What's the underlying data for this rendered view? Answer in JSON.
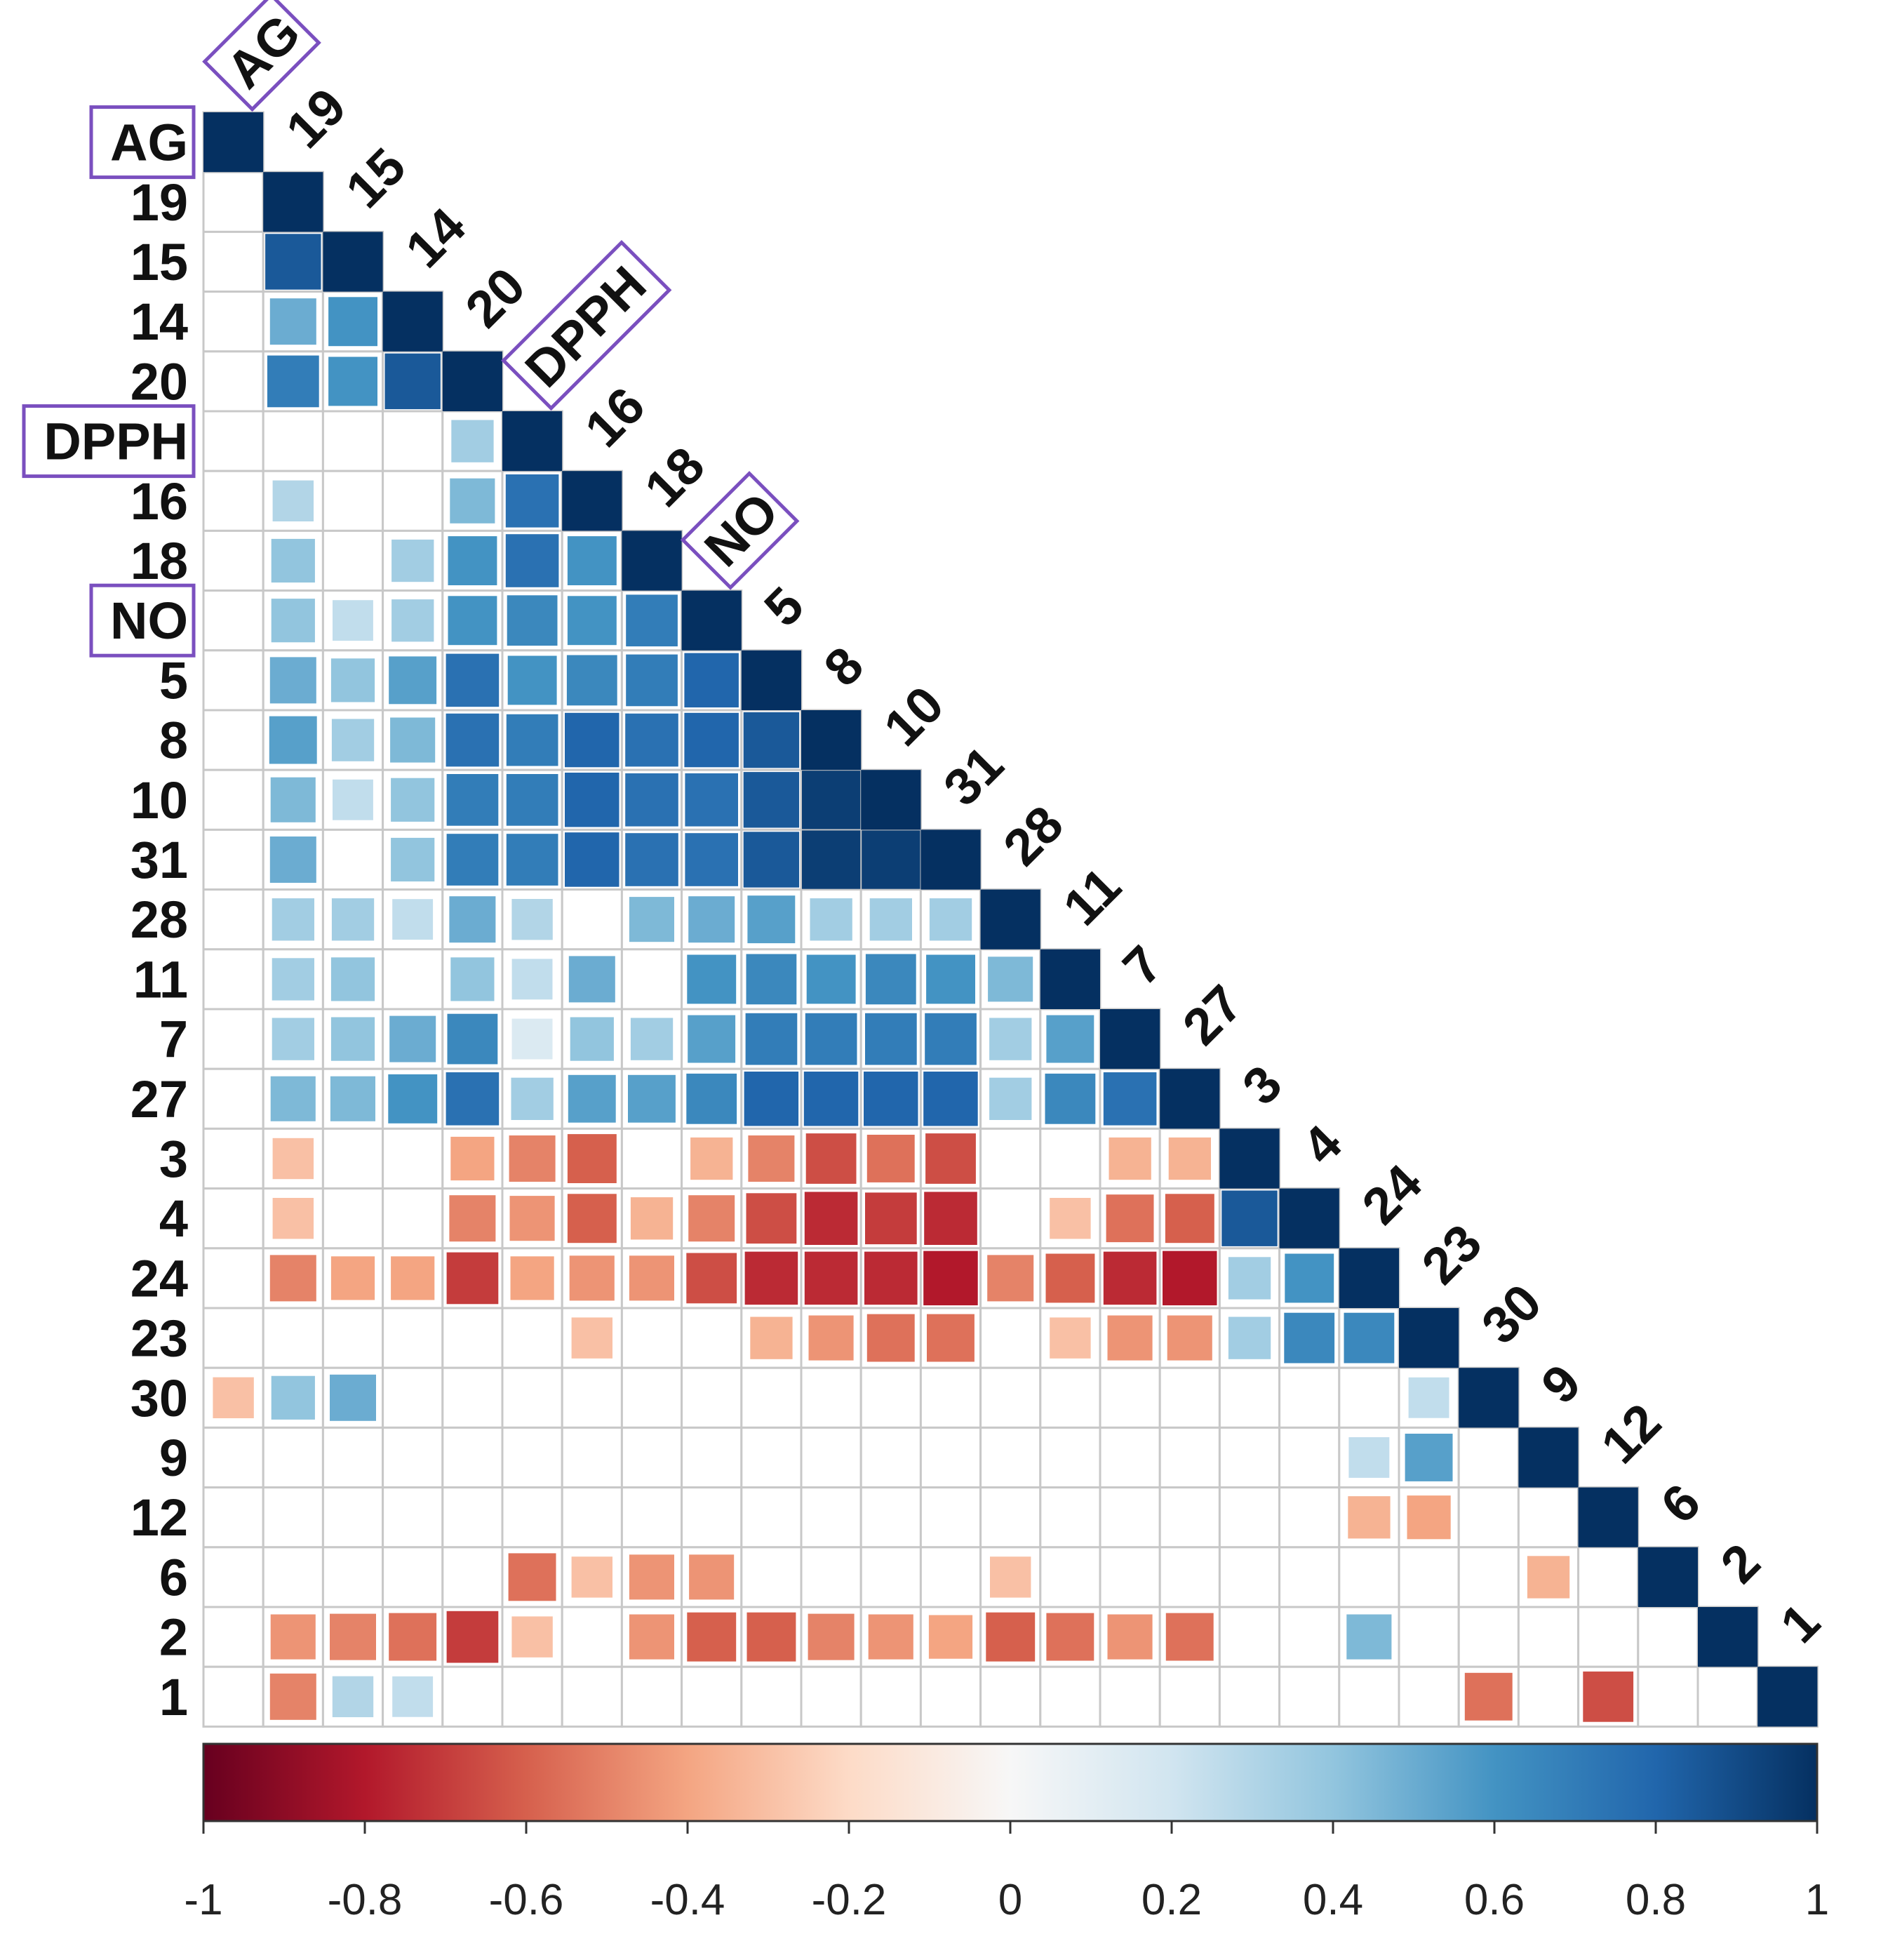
{
  "chart_data": {
    "type": "heatmap",
    "subtype": "correlation-matrix-lower-triangle",
    "title": "",
    "variables": [
      "AG",
      "19",
      "15",
      "14",
      "20",
      "DPPH",
      "16",
      "18",
      "NO",
      "5",
      "8",
      "10",
      "31",
      "28",
      "11",
      "7",
      "27",
      "3",
      "4",
      "24",
      "23",
      "30",
      "9",
      "12",
      "6",
      "2",
      "1"
    ],
    "highlighted_labels": [
      "AG",
      "DPPH",
      "NO"
    ],
    "values": [
      [
        1
      ],
      [
        0,
        1
      ],
      [
        0,
        0.85,
        1
      ],
      [
        0,
        0.5,
        0.6,
        1
      ],
      [
        0,
        0.7,
        0.6,
        0.85,
        1
      ],
      [
        0,
        0,
        0,
        0,
        0.35,
        1
      ],
      [
        0,
        0.3,
        0,
        0,
        0.45,
        0.75,
        1
      ],
      [
        0,
        0.4,
        0,
        0.35,
        0.6,
        0.75,
        0.6,
        1
      ],
      [
        0,
        0.4,
        0.25,
        0.35,
        0.6,
        0.65,
        0.6,
        0.7,
        1
      ],
      [
        0,
        0.5,
        0.4,
        0.55,
        0.75,
        0.6,
        0.65,
        0.7,
        0.8,
        1
      ],
      [
        0,
        0.55,
        0.35,
        0.45,
        0.75,
        0.7,
        0.8,
        0.75,
        0.8,
        0.85,
        1
      ],
      [
        0,
        0.45,
        0.25,
        0.4,
        0.7,
        0.7,
        0.8,
        0.75,
        0.75,
        0.85,
        0.95,
        1
      ],
      [
        0,
        0.5,
        0,
        0.4,
        0.7,
        0.7,
        0.8,
        0.75,
        0.75,
        0.85,
        0.95,
        0.95,
        1
      ],
      [
        0,
        0.35,
        0.35,
        0.25,
        0.5,
        0.3,
        0,
        0.45,
        0.5,
        0.55,
        0.35,
        0.35,
        0.35,
        1
      ],
      [
        0,
        0.35,
        0.4,
        0,
        0.4,
        0.25,
        0.5,
        0,
        0.6,
        0.65,
        0.6,
        0.65,
        0.6,
        0.45,
        1
      ],
      [
        0,
        0.35,
        0.4,
        0.5,
        0.65,
        0.15,
        0.4,
        0.35,
        0.55,
        0.7,
        0.7,
        0.7,
        0.7,
        0.35,
        0.55,
        1
      ],
      [
        0,
        0.45,
        0.45,
        0.6,
        0.75,
        0.35,
        0.55,
        0.55,
        0.65,
        0.8,
        0.8,
        0.8,
        0.8,
        0.35,
        0.65,
        0.75,
        1
      ],
      [
        0,
        -0.3,
        0,
        0,
        -0.4,
        -0.5,
        -0.6,
        0,
        -0.35,
        -0.5,
        -0.65,
        -0.55,
        -0.65,
        0,
        0,
        -0.35,
        -0.35,
        1
      ],
      [
        0,
        -0.3,
        0,
        0,
        -0.5,
        -0.45,
        -0.6,
        -0.35,
        -0.5,
        -0.65,
        -0.75,
        -0.7,
        -0.75,
        0,
        -0.3,
        -0.55,
        -0.6,
        0.85,
        1
      ],
      [
        0,
        -0.5,
        -0.4,
        -0.4,
        -0.7,
        -0.4,
        -0.45,
        -0.45,
        -0.65,
        -0.75,
        -0.75,
        -0.75,
        -0.8,
        -0.5,
        -0.6,
        -0.75,
        -0.8,
        0.35,
        0.6,
        1
      ],
      [
        0,
        0,
        0,
        0,
        0,
        0,
        -0.3,
        0,
        0,
        -0.35,
        -0.45,
        -0.55,
        -0.55,
        0,
        -0.3,
        -0.45,
        -0.45,
        0.35,
        0.65,
        0.65,
        1
      ],
      [
        -0.3,
        0.4,
        0.5,
        0,
        0,
        0,
        0,
        0,
        0,
        0,
        0,
        0,
        0,
        0,
        0,
        0,
        0,
        0,
        0,
        0,
        0.25,
        1
      ],
      [
        0,
        0,
        0,
        0,
        0,
        0,
        0,
        0,
        0,
        0,
        0,
        0,
        0,
        0,
        0,
        0,
        0,
        0,
        0,
        0.25,
        0.55,
        0,
        1
      ],
      [
        0,
        0,
        0,
        0,
        0,
        0,
        0,
        0,
        0,
        0,
        0,
        0,
        0,
        0,
        0,
        0,
        0,
        0,
        0,
        -0.35,
        -0.4,
        0,
        0,
        1
      ],
      [
        0,
        0,
        0,
        0,
        0,
        -0.55,
        -0.3,
        -0.45,
        -0.45,
        0,
        0,
        0,
        0,
        -0.3,
        0,
        0,
        0,
        0,
        0,
        0,
        0,
        0,
        -0.35,
        0,
        1
      ],
      [
        0,
        -0.45,
        -0.5,
        -0.55,
        -0.7,
        -0.3,
        0,
        -0.45,
        -0.6,
        -0.6,
        -0.5,
        -0.45,
        -0.4,
        -0.6,
        -0.55,
        -0.45,
        -0.55,
        0,
        0,
        0.45,
        0,
        0,
        0,
        0,
        0,
        1
      ],
      [
        0,
        -0.5,
        0.3,
        0.25,
        0,
        0,
        0,
        0,
        0,
        0,
        0,
        0,
        0,
        0,
        0,
        0,
        0,
        0,
        0,
        0,
        0,
        -0.55,
        0,
        -0.65,
        0,
        0,
        1
      ]
    ],
    "colorbar": {
      "range": [
        -1,
        1
      ],
      "ticks": [
        "-1",
        "-0.8",
        "-0.6",
        "-0.4",
        "-0.2",
        "0",
        "0.2",
        "0.4",
        "0.6",
        "0.8",
        "1"
      ],
      "low_color": "#67001f",
      "mid_color": "#f7f7f7",
      "high_color": "#053061"
    },
    "label_box_color": "#7a4fbf",
    "grid_color": "#c8c8c8"
  }
}
